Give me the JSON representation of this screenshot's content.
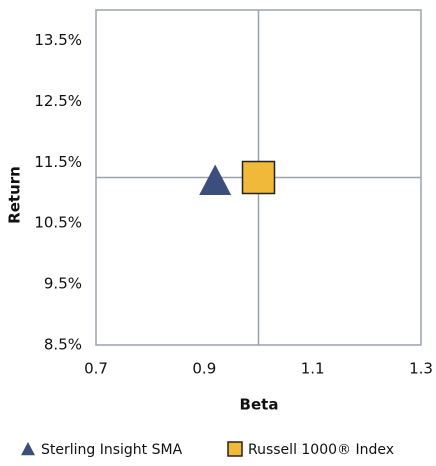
{
  "chart_data": {
    "type": "scatter",
    "x_label": "Beta",
    "y_label": "Return",
    "xlim": [
      0.7,
      1.3
    ],
    "xticks": [
      0.7,
      0.9,
      1.1,
      1.3
    ],
    "ylim": [
      8.5,
      14.0
    ],
    "yticks": [
      {
        "value": 8.5,
        "label": "8.5%"
      },
      {
        "value": 9.5,
        "label": "9.5%"
      },
      {
        "value": 10.5,
        "label": "10.5%"
      },
      {
        "value": 11.5,
        "label": "11.5%"
      },
      {
        "value": 12.5,
        "label": "12.5%"
      },
      {
        "value": 13.5,
        "label": "13.5%"
      }
    ],
    "series": [
      {
        "name": "Sterling Insight SMA",
        "color": "#3b4e7c",
        "marker": "triangle",
        "x": [
          0.92
        ],
        "values": [
          11.2
        ]
      },
      {
        "name": "Russell 1000® Index",
        "color": "#f0b93a",
        "marker": "square",
        "x": [
          1.0
        ],
        "values": [
          11.25
        ]
      }
    ],
    "crosshair_series": 1,
    "legend": "bottom"
  }
}
